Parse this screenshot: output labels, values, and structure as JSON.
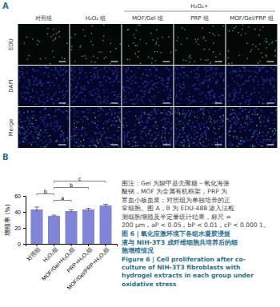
{
  "panel_a": {
    "label": "A",
    "group_header": "H₂O₂+",
    "columns": [
      "对照组",
      "H₂O₂ 组",
      "MOF/Gel 组",
      "PRP 组",
      "MOF/Gel/PRP 组"
    ],
    "rows": [
      "EDU",
      "DAPI",
      "Merge"
    ]
  },
  "panel_b_label": "B",
  "chart_data": {
    "type": "bar",
    "y_label": "增殖率 (%)",
    "categories": [
      "对照组",
      "H₂O₂组",
      "MOF/Gel+H₂O₂组",
      "PRP+H₂O₂组",
      "MOF/Gel/PRP+H₂O₂组"
    ],
    "values": [
      43,
      35,
      41,
      43,
      48
    ],
    "errors": [
      3,
      1,
      1.5,
      1.5,
      1.5
    ],
    "color": "#8085d8",
    "ylim": [
      0,
      60
    ],
    "yticks": [
      0,
      20,
      40,
      60
    ],
    "significance": [
      {
        "from": 1,
        "to": 4,
        "label": "c"
      },
      {
        "from": 1,
        "to": 3,
        "label": "b"
      },
      {
        "from": 0,
        "to": 1,
        "label": "b"
      },
      {
        "from": 1,
        "to": 2,
        "label": "a"
      }
    ]
  },
  "caption": {
    "note_lines": [
      "图注：Gel 为羧甲基壳聚糖－氧化海藻",
      "酸钠，MOF 为金属有机框架，PRP 为",
      "富血小板血浆；对照组为单独培养的正",
      "常细胞。图 A，B 为 EDU-488 渗入法检",
      "测细胞增殖及半定量统计结果，标尺 =",
      "200 μm，aP < 0.05，bP < 0.01，cP < 0.000 1。"
    ],
    "title_cn_lines": [
      "图 6 | 氧化应激环境下各组水凝胶浸提",
      "液与 NIH-3T3 成纤维细胞共培养后的细",
      "胞增殖情况"
    ],
    "title_en_lines": [
      "Figure 6 | Cell proliferation after co-",
      "culture of NIH-3T3 fibroblasts with",
      "hydrogel extracts in each group under",
      "oxidative stress"
    ]
  }
}
